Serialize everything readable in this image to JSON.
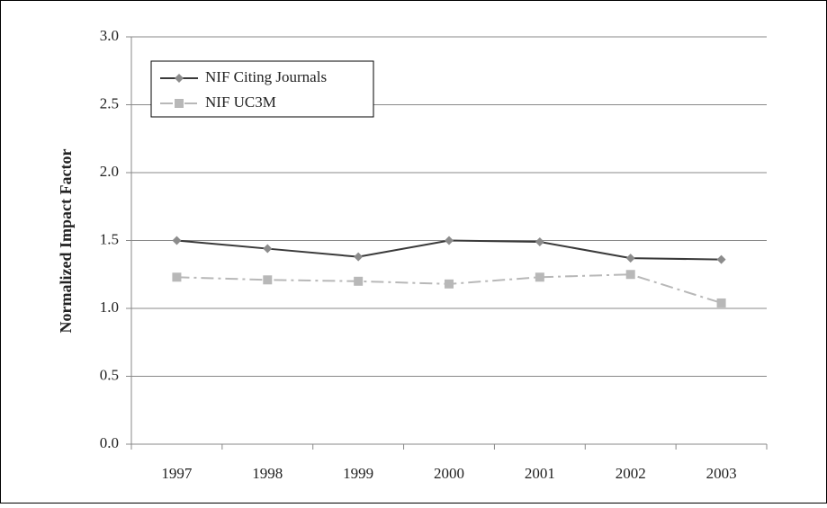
{
  "chart_data": {
    "type": "line",
    "y_label": "Normalized Impact Factor",
    "categories": [
      "1997",
      "1998",
      "1999",
      "2000",
      "2001",
      "2002",
      "2003"
    ],
    "series": [
      {
        "name": "NIF Citing Journals",
        "color": "#3a3a3a",
        "marker_color": "#8c8c8c",
        "marker": "diamond",
        "dash": "solid",
        "values": [
          1.5,
          1.44,
          1.38,
          1.5,
          1.49,
          1.37,
          1.36
        ]
      },
      {
        "name": "NIF UC3M",
        "color": "#b8b8b8",
        "marker_color": "#b8b8b8",
        "marker": "square",
        "dash": "dashdot",
        "values": [
          1.23,
          1.21,
          1.2,
          1.18,
          1.23,
          1.25,
          1.04
        ]
      }
    ],
    "ylim": [
      0,
      3
    ],
    "yticks": [
      {
        "value": 0,
        "label": "0.0"
      },
      {
        "value": 0.5,
        "label": "0.5"
      },
      {
        "value": 1,
        "label": "1.0"
      },
      {
        "value": 1.5,
        "label": "1.5"
      },
      {
        "value": 2,
        "label": "2.0"
      },
      {
        "value": 2.5,
        "label": "2.5"
      },
      {
        "value": 3,
        "label": "3.0"
      }
    ],
    "grid": true,
    "legend": "upper left"
  }
}
